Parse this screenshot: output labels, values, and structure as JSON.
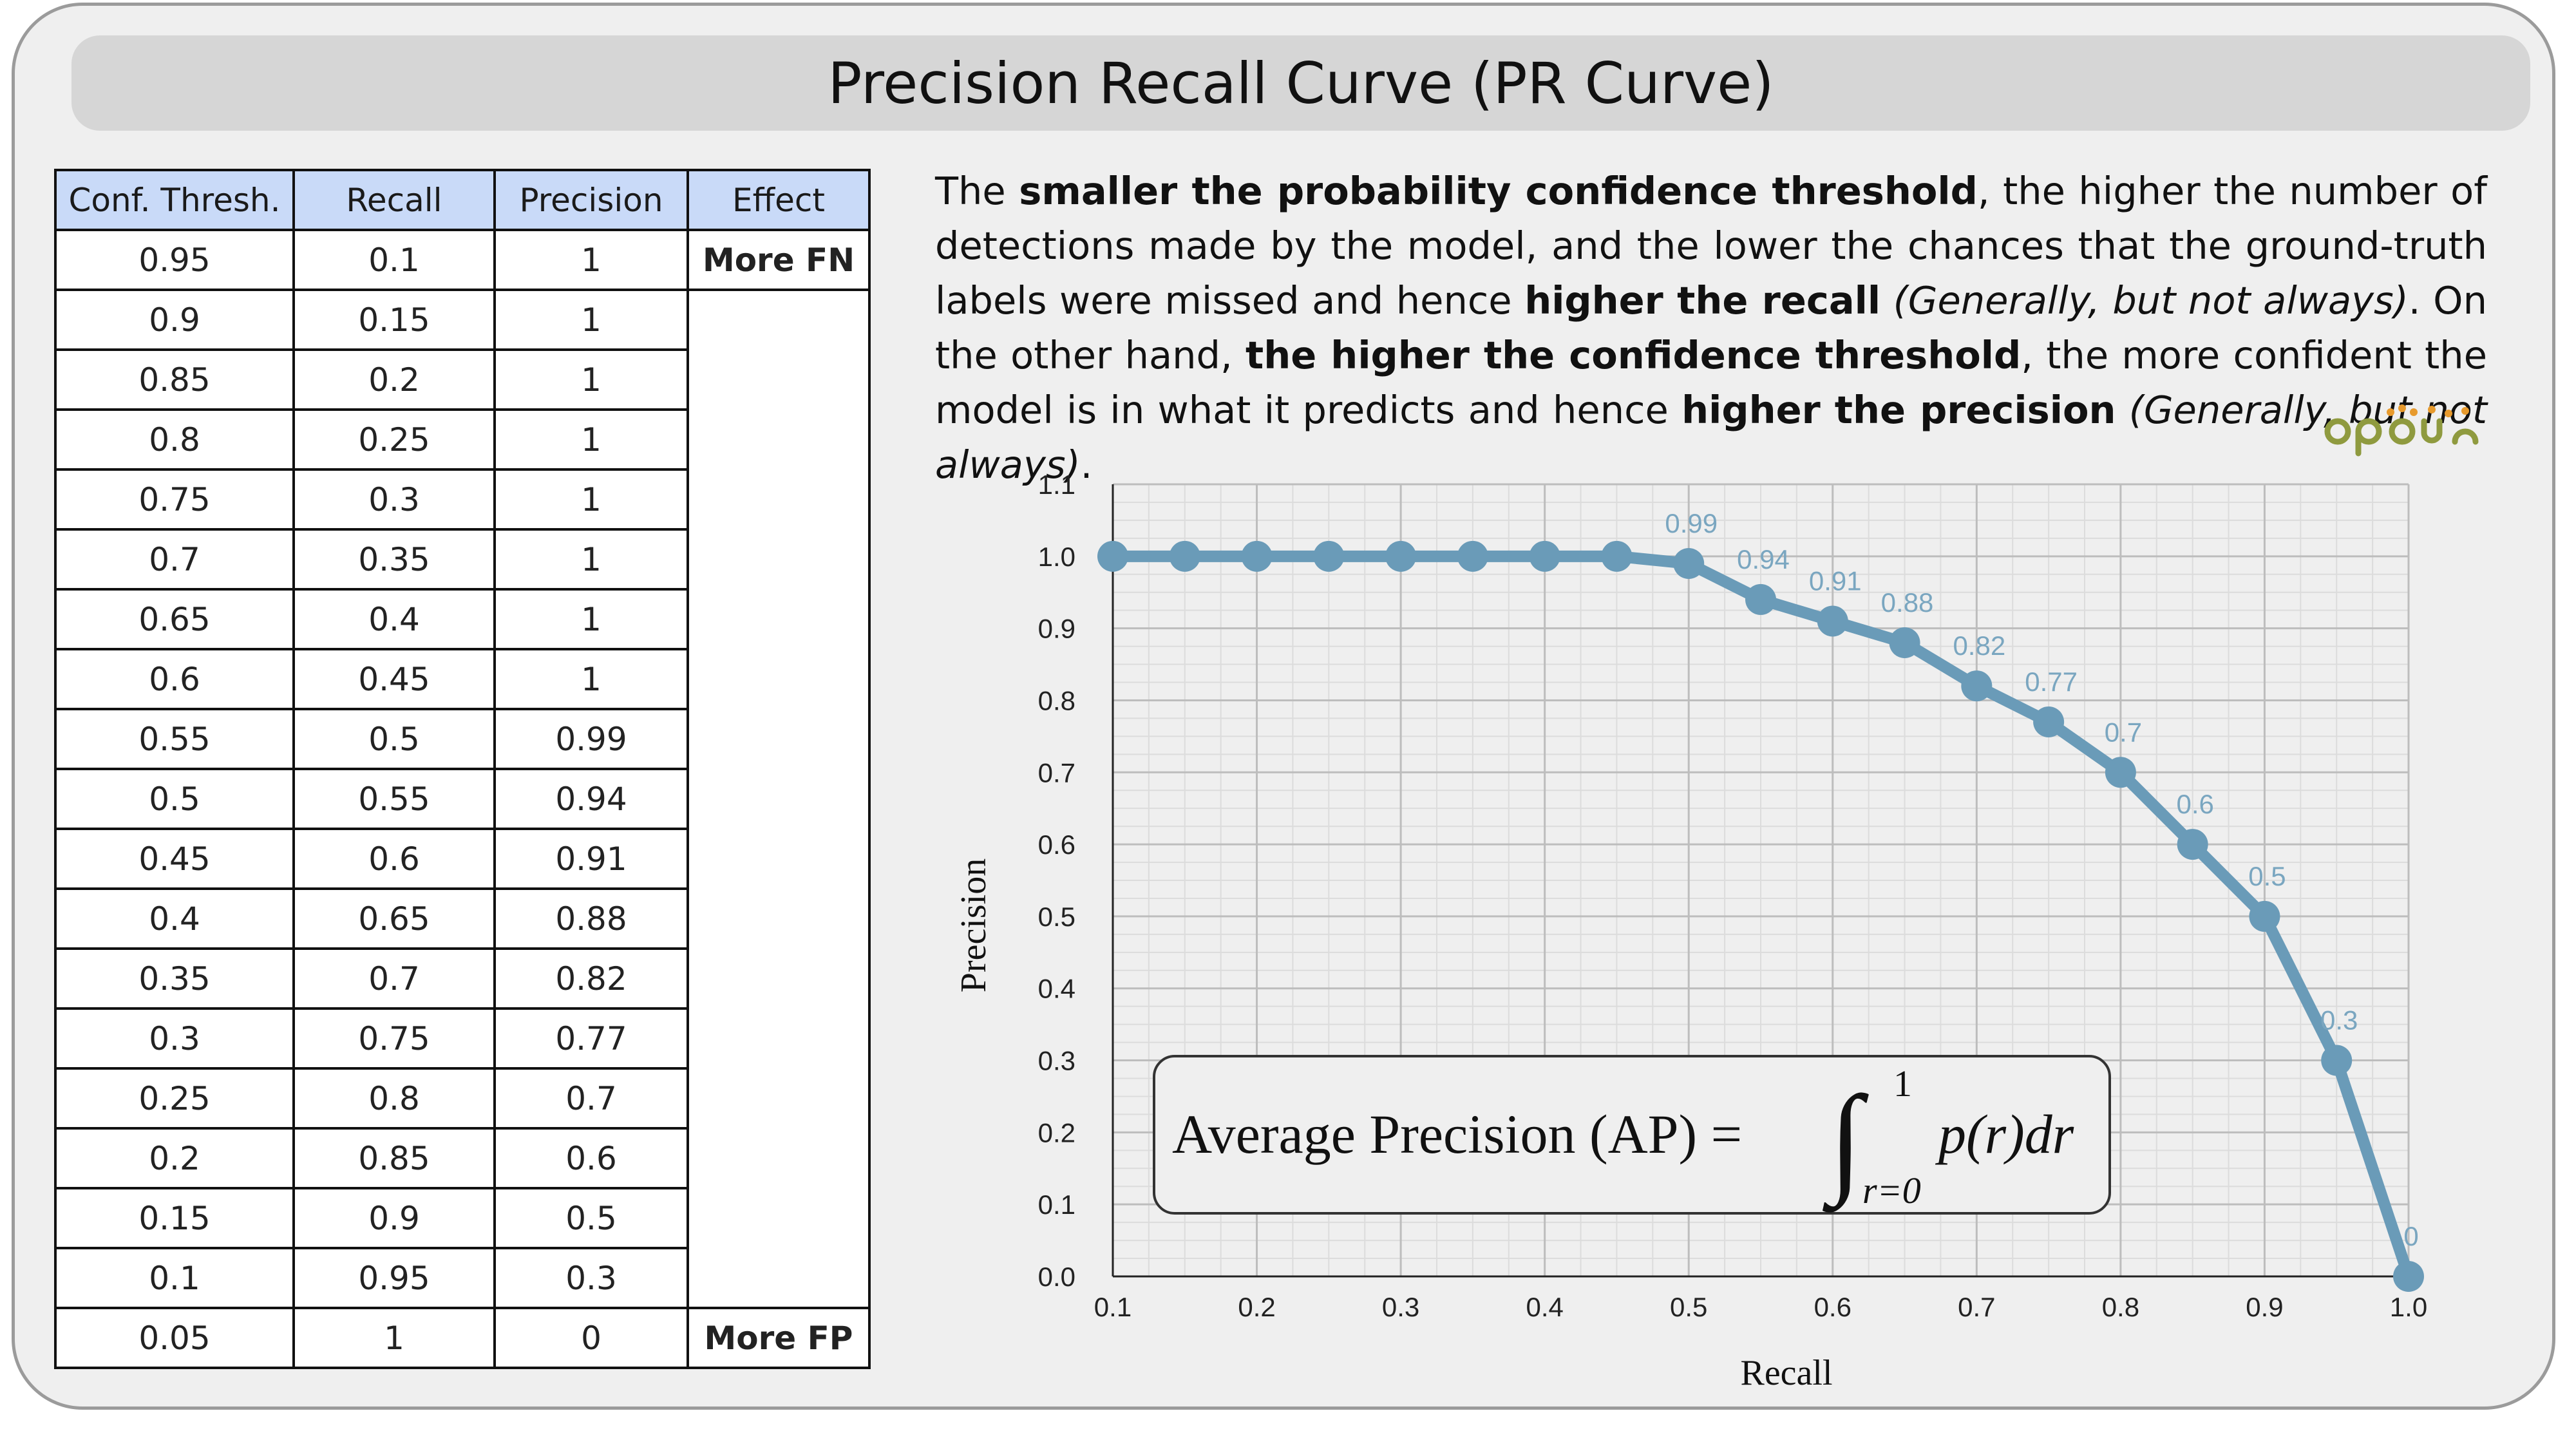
{
  "title": "Precision Recall Curve (PR Curve)",
  "table": {
    "headers": [
      "Conf. Thresh.",
      "Recall",
      "Precision",
      "Effect"
    ],
    "rows": [
      [
        "0.95",
        "0.1",
        "1",
        "More FN"
      ],
      [
        "0.9",
        "0.15",
        "1",
        ""
      ],
      [
        "0.85",
        "0.2",
        "1",
        ""
      ],
      [
        "0.8",
        "0.25",
        "1",
        ""
      ],
      [
        "0.75",
        "0.3",
        "1",
        ""
      ],
      [
        "0.7",
        "0.35",
        "1",
        ""
      ],
      [
        "0.65",
        "0.4",
        "1",
        ""
      ],
      [
        "0.6",
        "0.45",
        "1",
        ""
      ],
      [
        "0.55",
        "0.5",
        "0.99",
        ""
      ],
      [
        "0.5",
        "0.55",
        "0.94",
        ""
      ],
      [
        "0.45",
        "0.6",
        "0.91",
        ""
      ],
      [
        "0.4",
        "0.65",
        "0.88",
        ""
      ],
      [
        "0.35",
        "0.7",
        "0.82",
        ""
      ],
      [
        "0.3",
        "0.75",
        "0.77",
        ""
      ],
      [
        "0.25",
        "0.8",
        "0.7",
        ""
      ],
      [
        "0.2",
        "0.85",
        "0.6",
        ""
      ],
      [
        "0.15",
        "0.9",
        "0.5",
        ""
      ],
      [
        "0.1",
        "0.95",
        "0.3",
        ""
      ],
      [
        "0.05",
        "1",
        "0",
        "More FP"
      ]
    ]
  },
  "description": {
    "p1": "The ",
    "b1": "smaller the probability confidence threshold",
    "p2": ", the higher the number of detections made by the model, and the lower the chances that the ground-truth labels were missed and hence ",
    "b2": "higher the recall",
    "i1": "(Generally, but not always)",
    "p3": ". On the other hand, ",
    "b3": "the higher the confidence threshold",
    "p4": ", the more confident the model is in what it predicts and hence ",
    "b4": "higher the precision",
    "i2": "(Generally, but not always)",
    "p5": "."
  },
  "formula": {
    "lhs": "Average Precision (AP) =",
    "upper": "1",
    "lower": "r=0",
    "integrand": "p(r)dr"
  },
  "colors": {
    "series": "#6a9bb8",
    "label": "#7aa6c0",
    "header_bg": "#c9daf8",
    "more_fn": "#e00000",
    "more_fp": "#4a7fd8",
    "logo_green": "#8f9a3f",
    "logo_orange": "#e79a2d"
  },
  "chart_data": {
    "type": "line",
    "xlabel": "Recall",
    "ylabel": "Precision",
    "xlim": [
      0.1,
      1.0
    ],
    "ylim": [
      0.0,
      1.1
    ],
    "xticks": [
      "0.1",
      "0.2",
      "0.3",
      "0.4",
      "0.5",
      "0.6",
      "0.7",
      "0.8",
      "0.9",
      "1.0"
    ],
    "yticks": [
      "0.0",
      "0.1",
      "0.2",
      "0.3",
      "0.4",
      "0.5",
      "0.6",
      "0.7",
      "0.8",
      "0.9",
      "1.0",
      "1.1"
    ],
    "grid": true,
    "x": [
      0.1,
      0.15,
      0.2,
      0.25,
      0.3,
      0.35,
      0.4,
      0.45,
      0.5,
      0.55,
      0.6,
      0.65,
      0.7,
      0.75,
      0.8,
      0.85,
      0.9,
      0.95,
      1.0
    ],
    "y": [
      1,
      1,
      1,
      1,
      1,
      1,
      1,
      1,
      0.99,
      0.94,
      0.91,
      0.88,
      0.82,
      0.77,
      0.7,
      0.6,
      0.5,
      0.3,
      0
    ],
    "point_labels": [
      "",
      "",
      "",
      "",
      "",
      "",
      "",
      "",
      "0.99",
      "0.94",
      "0.91",
      "0.88",
      "0.82",
      "0.77",
      "0.7",
      "0.6",
      "0.5",
      "0.3",
      "0"
    ]
  }
}
